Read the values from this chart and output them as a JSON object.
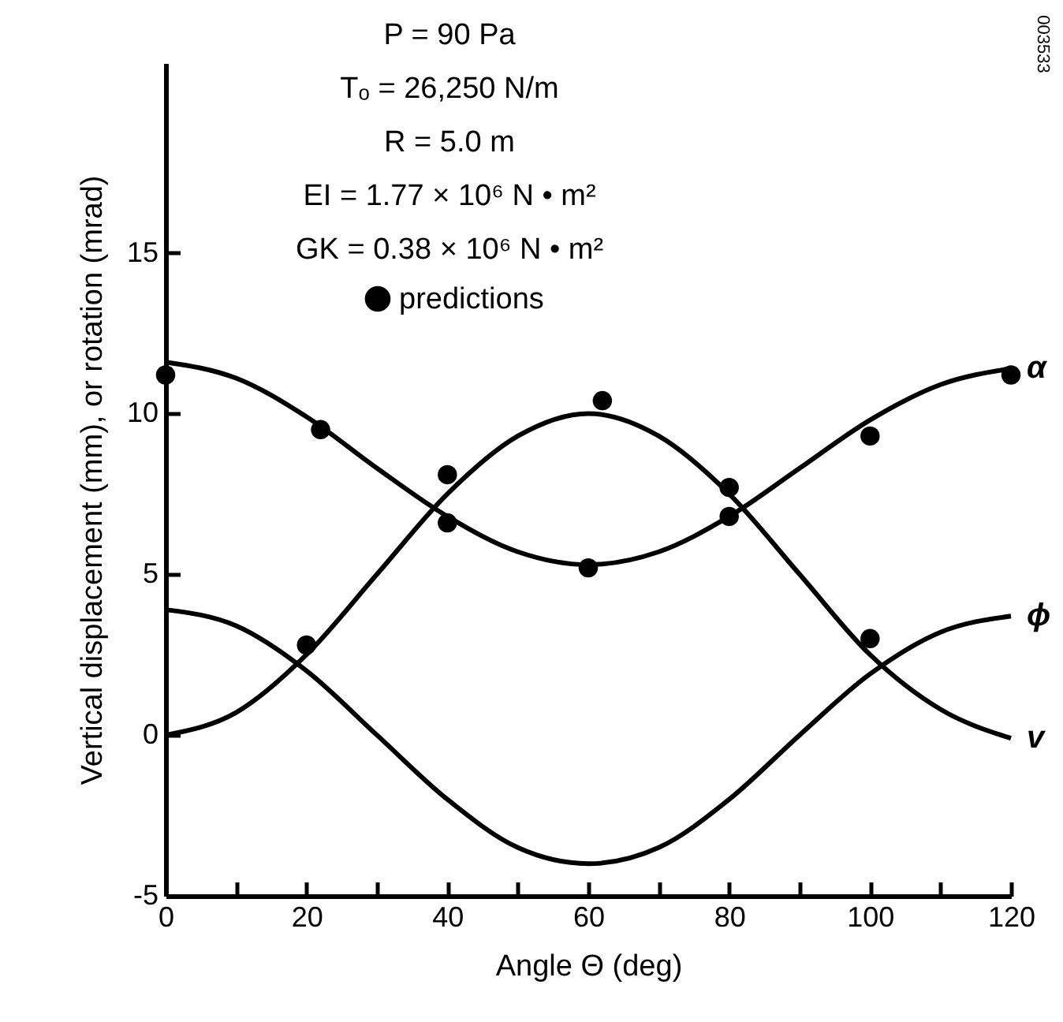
{
  "chart_data": {
    "type": "line",
    "xlabel": "Angle Θ (deg)",
    "ylabel": "Vertical displacement (mm), or rotation (mrad)",
    "annotations": [
      "P = 90 Pa",
      "Tₒ = 26,250 N/m",
      "R = 5.0 m",
      "EI = 1.77 × 10⁶ N • m²",
      "GK = 0.38 × 10⁶ N • m²",
      "003533"
    ],
    "x": [
      0,
      10,
      20,
      30,
      40,
      50,
      60,
      70,
      80,
      90,
      100,
      110,
      120
    ],
    "series": [
      {
        "name": "α",
        "color": "#000000",
        "values": [
          11.6,
          11.1,
          9.9,
          8.3,
          6.8,
          5.7,
          5.3,
          5.7,
          6.8,
          8.3,
          9.8,
          10.9,
          11.4
        ]
      },
      {
        "name": "v",
        "color": "#000000",
        "values": [
          0,
          0.7,
          2.5,
          5.0,
          7.5,
          9.3,
          10.0,
          9.3,
          7.5,
          5.0,
          2.5,
          0.8,
          -0.1
        ]
      },
      {
        "name": "ϕ",
        "color": "#000000",
        "values": [
          3.9,
          3.4,
          2.0,
          0,
          -2.0,
          -3.5,
          -4.0,
          -3.5,
          -2.0,
          0,
          1.9,
          3.2,
          3.7
        ]
      },
      {
        "name": "predictions",
        "color": "#000000",
        "type": "scatter",
        "marker": "circle",
        "x": [
          0,
          22,
          20,
          40,
          40,
          62,
          60,
          80,
          80,
          100,
          100,
          120
        ],
        "values": [
          11.2,
          9.5,
          2.8,
          8.1,
          6.6,
          10.4,
          5.2,
          7.7,
          6.8,
          9.3,
          3.0,
          11.2
        ]
      }
    ],
    "xlim": [
      0,
      120
    ],
    "xticks": [
      0,
      {
        "value": 10,
        "label": null
      },
      20,
      {
        "value": 30,
        "label": null
      },
      40,
      {
        "value": 50,
        "label": null
      },
      60,
      {
        "value": 70,
        "label": null
      },
      80,
      {
        "value": 90,
        "label": null
      },
      100,
      {
        "value": 110,
        "label": null
      },
      120
    ],
    "ylim": [
      -5,
      20.9
    ],
    "yticks": [
      -5,
      0,
      5,
      10,
      15
    ],
    "grid": false,
    "legend": "top",
    "marker": "none",
    "line_style": "solid"
  }
}
